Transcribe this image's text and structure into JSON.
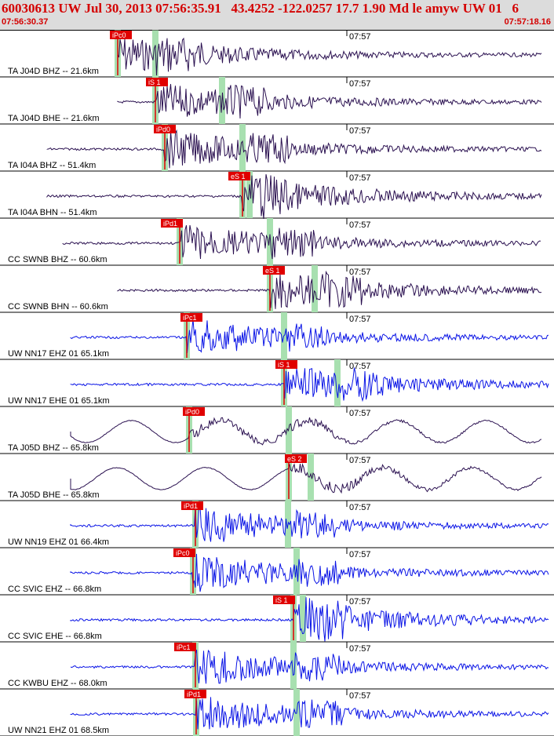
{
  "header": {
    "title": "60030613 UW Jul 30, 2013 07:56:35.91   43.4252 -122.0257 17.7 1.90 Md le amyw UW 01   6",
    "start_time": "07:56:30.37",
    "end_time": "07:57:18.16"
  },
  "tick_label": "07:57",
  "colors": {
    "dark_trace": "#2a1050",
    "blue_trace": "#0a14e6",
    "pick_red": "#e00000",
    "window_green": "#a8e0b0"
  },
  "traces": [
    {
      "label": "TA J04D BHZ -- 21.6km",
      "color": "dark",
      "pick": "iPc0",
      "pick_type": "P",
      "wave_start": 150
    },
    {
      "label": "TA J04D BHE -- 21.6km",
      "color": "dark",
      "pick": "iS 1",
      "pick_type": "S",
      "wave_start": 150
    },
    {
      "label": "TA I04A BHZ -- 51.4km",
      "color": "dark",
      "pick": "iPd0",
      "pick_type": "P",
      "wave_start": 60
    },
    {
      "label": "TA I04A BHN -- 51.4km",
      "color": "dark",
      "pick": "eS 1",
      "pick_type": "S",
      "wave_start": 60
    },
    {
      "label": "CC SWNB BHZ -- 60.6km",
      "color": "dark",
      "pick": "iPd1",
      "pick_type": "P",
      "wave_start": 80
    },
    {
      "label": "CC SWNB BHN -- 60.6km",
      "color": "dark",
      "pick": "eS 1",
      "pick_type": "S",
      "wave_start": 150
    },
    {
      "label": "UW NN17 EHZ 01 65.1km",
      "color": "blue",
      "pick": "iPc1",
      "pick_type": "P",
      "wave_start": 90
    },
    {
      "label": "UW NN17 EHE 01 65.1km",
      "color": "blue",
      "pick": "iS 1",
      "pick_type": "S",
      "wave_start": 90
    },
    {
      "label": "TA J05D BHZ -- 65.8km",
      "color": "dark",
      "pick": "iPd0",
      "pick_type": "P",
      "wave_start": 90
    },
    {
      "label": "TA J05D BHE -- 65.8km",
      "color": "dark",
      "pick": "eS 2",
      "pick_type": "S",
      "wave_start": 90
    },
    {
      "label": "UW NN19 EHZ 01 66.4km",
      "color": "blue",
      "pick": "iPd1",
      "pick_type": "P",
      "wave_start": 90
    },
    {
      "label": "CC SVIC EHZ -- 66.8km",
      "color": "blue",
      "pick": "iPc0",
      "pick_type": "P",
      "wave_start": 90
    },
    {
      "label": "CC SVIC EHE -- 66.8km",
      "color": "blue",
      "pick": "iS 1",
      "pick_type": "S",
      "wave_start": 90
    },
    {
      "label": "CC KWBU EHZ -- 68.0km",
      "color": "blue",
      "pick": "iPc1",
      "pick_type": "P",
      "wave_start": 90
    },
    {
      "label": "UW NN21 EHZ 01 68.5km",
      "color": "blue",
      "pick": "iPd1",
      "pick_type": "P",
      "wave_start": 90
    }
  ]
}
